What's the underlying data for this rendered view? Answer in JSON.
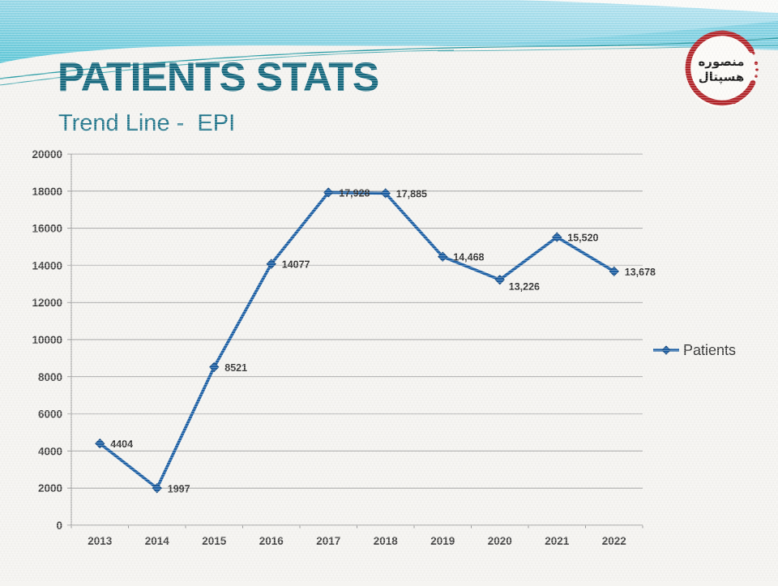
{
  "slide": {
    "title": "PATIENTS STATS",
    "subtitle": "Trend Line -  EPI"
  },
  "logo": {
    "line1": "منصوره",
    "line2": "هسپتال"
  },
  "chart_data": {
    "type": "line",
    "title": "",
    "xlabel": "",
    "ylabel": "",
    "categories": [
      "2013",
      "2014",
      "2015",
      "2016",
      "2017",
      "2018",
      "2019",
      "2020",
      "2021",
      "2022"
    ],
    "series": [
      {
        "name": "Patients",
        "values": [
          4404,
          1997,
          8521,
          14077,
          17928,
          17885,
          14468,
          13226,
          15520,
          13678
        ],
        "labels": [
          "4404",
          "1997",
          "8521",
          "14077",
          "17,928",
          "17,885",
          "14,468",
          "13,226",
          "15,520",
          "13,678"
        ]
      }
    ],
    "ylim": [
      0,
      20000
    ],
    "ytick_step": 2000,
    "yticks": [
      "0",
      "2000",
      "4000",
      "6000",
      "8000",
      "10000",
      "12000",
      "14000",
      "16000",
      "18000",
      "20000"
    ],
    "grid": true,
    "legend_position": "right",
    "line_color": "#1d60a5",
    "marker": "diamond",
    "marker_edge_color": "#16497e",
    "grid_color": "#a7a7a7",
    "axis_color": "#9c9c9c",
    "tick_label_color": "#3d3d3d",
    "data_label_color": "#2e2e2e"
  },
  "colors": {
    "title": "#15687e",
    "subtitle": "#1d7389",
    "band_teal_dark": "#5fc8d8",
    "band_teal_light": "#b6e4f1",
    "accent_line": "#2f9fa8",
    "logo_red": "#b2252a"
  }
}
